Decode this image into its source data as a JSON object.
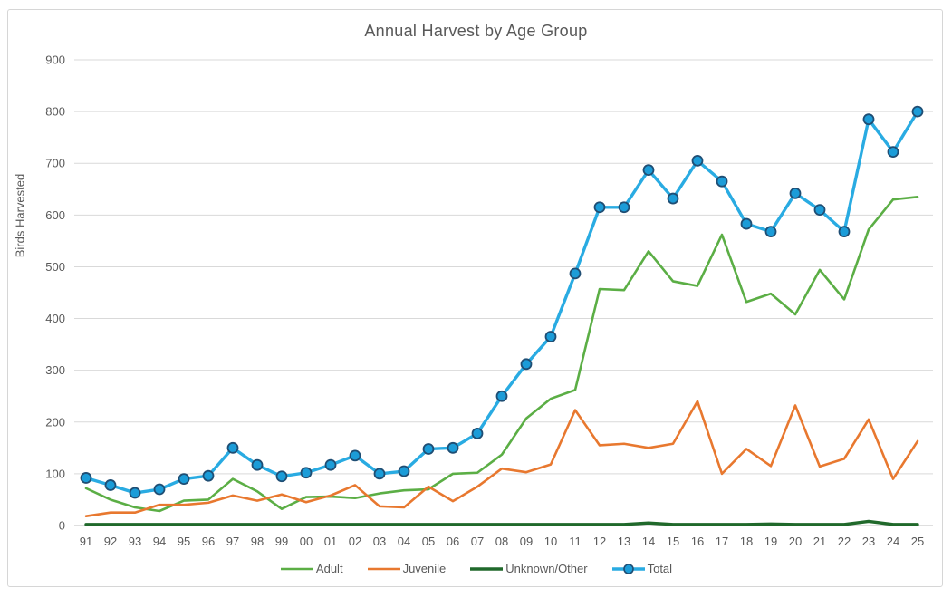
{
  "chart_data": {
    "type": "line",
    "title": "Annual Harvest by Age Group",
    "xlabel": "",
    "ylabel": "Birds Harvested",
    "ylim": [
      0,
      900
    ],
    "y_ticks": [
      0,
      100,
      200,
      300,
      400,
      500,
      600,
      700,
      800,
      900
    ],
    "grid": "horizontal",
    "legend_position": "bottom",
    "categories": [
      "91",
      "92",
      "93",
      "94",
      "95",
      "96",
      "97",
      "98",
      "99",
      "00",
      "01",
      "02",
      "03",
      "04",
      "05",
      "06",
      "07",
      "08",
      "09",
      "10",
      "11",
      "12",
      "13",
      "14",
      "15",
      "16",
      "17",
      "18",
      "19",
      "20",
      "21",
      "22",
      "23",
      "24",
      "25"
    ],
    "series": [
      {
        "name": "Adult",
        "color": "#5bae45",
        "line_width": 2.6,
        "marker": false,
        "values": [
          72,
          50,
          35,
          28,
          48,
          50,
          90,
          66,
          32,
          55,
          56,
          53,
          62,
          68,
          70,
          100,
          102,
          137,
          207,
          245,
          262,
          457,
          455,
          530,
          472,
          463,
          562,
          432,
          448,
          408,
          494,
          437,
          572,
          630,
          635
        ]
      },
      {
        "name": "Juvenile",
        "color": "#e8782f",
        "line_width": 2.6,
        "marker": false,
        "values": [
          18,
          25,
          25,
          40,
          40,
          44,
          58,
          48,
          60,
          45,
          58,
          78,
          37,
          35,
          75,
          47,
          75,
          110,
          103,
          118,
          223,
          155,
          158,
          150,
          158,
          240,
          100,
          148,
          115,
          232,
          114,
          129,
          205,
          90,
          163
        ]
      },
      {
        "name": "Unknown/Other",
        "color": "#20692b",
        "line_width": 3.4,
        "marker": false,
        "values": [
          2,
          2,
          2,
          2,
          2,
          2,
          2,
          2,
          2,
          2,
          2,
          2,
          2,
          2,
          2,
          2,
          2,
          2,
          2,
          2,
          2,
          2,
          2,
          5,
          2,
          2,
          2,
          2,
          3,
          2,
          2,
          2,
          8,
          2,
          2
        ]
      },
      {
        "name": "Total",
        "color": "#29abe2",
        "line_width": 3.4,
        "marker": true,
        "marker_fill": "#1b9cd8",
        "marker_stroke": "#1f4e74",
        "values": [
          92,
          78,
          63,
          70,
          90,
          96,
          150,
          117,
          95,
          102,
          117,
          135,
          100,
          105,
          148,
          150,
          178,
          250,
          312,
          365,
          487,
          615,
          615,
          687,
          632,
          705,
          665,
          583,
          568,
          642,
          610,
          568,
          785,
          722,
          800
        ]
      }
    ],
    "text_color": "#595959",
    "grid_color": "#d9d9d9",
    "axis_line_color": "#bfbfbf"
  }
}
